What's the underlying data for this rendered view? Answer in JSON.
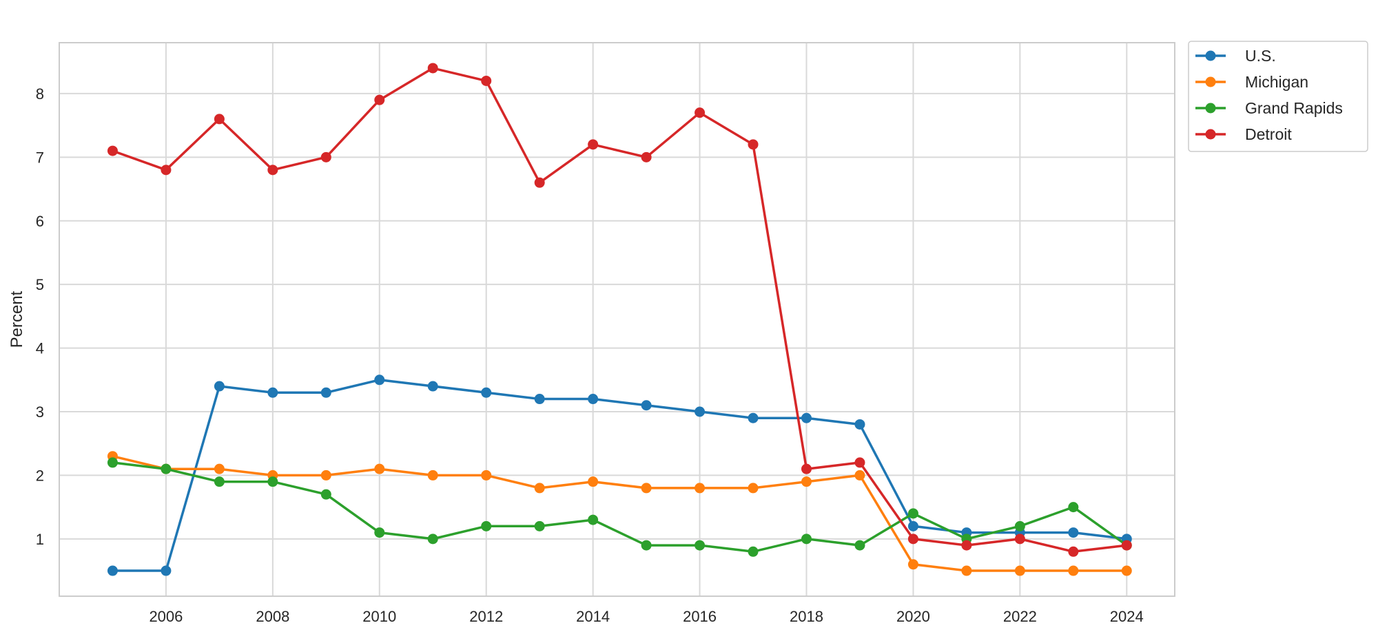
{
  "chart_data": {
    "type": "line",
    "title": "",
    "xlabel": "",
    "ylabel": "Percent",
    "x": [
      2005,
      2006,
      2007,
      2008,
      2009,
      2010,
      2011,
      2012,
      2013,
      2014,
      2015,
      2016,
      2017,
      2018,
      2019,
      2020,
      2021,
      2022,
      2023,
      2024
    ],
    "xlim": [
      2004.0,
      2024.9
    ],
    "ylim": [
      0.1,
      8.8
    ],
    "x_ticks": [
      "2006",
      "2008",
      "2010",
      "2012",
      "2014",
      "2016",
      "2018",
      "2020",
      "2022",
      "2024"
    ],
    "y_ticks": [
      "1",
      "2",
      "3",
      "4",
      "5",
      "6",
      "7",
      "8"
    ],
    "grid": true,
    "legend_position": "outside-top-right",
    "markers": "circle",
    "series": [
      {
        "name": "U.S.",
        "color": "#1f77b4",
        "values": [
          0.5,
          0.5,
          3.4,
          3.3,
          3.3,
          3.5,
          3.4,
          3.3,
          3.2,
          3.2,
          3.1,
          3.0,
          2.9,
          2.9,
          2.8,
          1.2,
          1.1,
          1.1,
          1.1,
          1.0
        ]
      },
      {
        "name": "Michigan",
        "color": "#ff7f0e",
        "values": [
          2.3,
          2.1,
          2.1,
          2.0,
          2.0,
          2.1,
          2.0,
          2.0,
          1.8,
          1.9,
          1.8,
          1.8,
          1.8,
          1.9,
          2.0,
          0.6,
          0.5,
          0.5,
          0.5,
          0.5
        ]
      },
      {
        "name": "Grand Rapids",
        "color": "#2ca02c",
        "values": [
          2.2,
          2.1,
          1.9,
          1.9,
          1.7,
          1.1,
          1.0,
          1.2,
          1.2,
          1.3,
          0.9,
          0.9,
          0.8,
          1.0,
          0.9,
          1.4,
          1.0,
          1.2,
          1.5,
          0.9
        ]
      },
      {
        "name": "Detroit",
        "color": "#d62728",
        "values": [
          7.1,
          6.8,
          7.6,
          6.8,
          7.0,
          7.9,
          8.4,
          8.2,
          6.6,
          7.2,
          7.0,
          7.7,
          7.2,
          2.1,
          2.2,
          1.0,
          0.9,
          1.0,
          0.8,
          0.9
        ]
      }
    ]
  }
}
